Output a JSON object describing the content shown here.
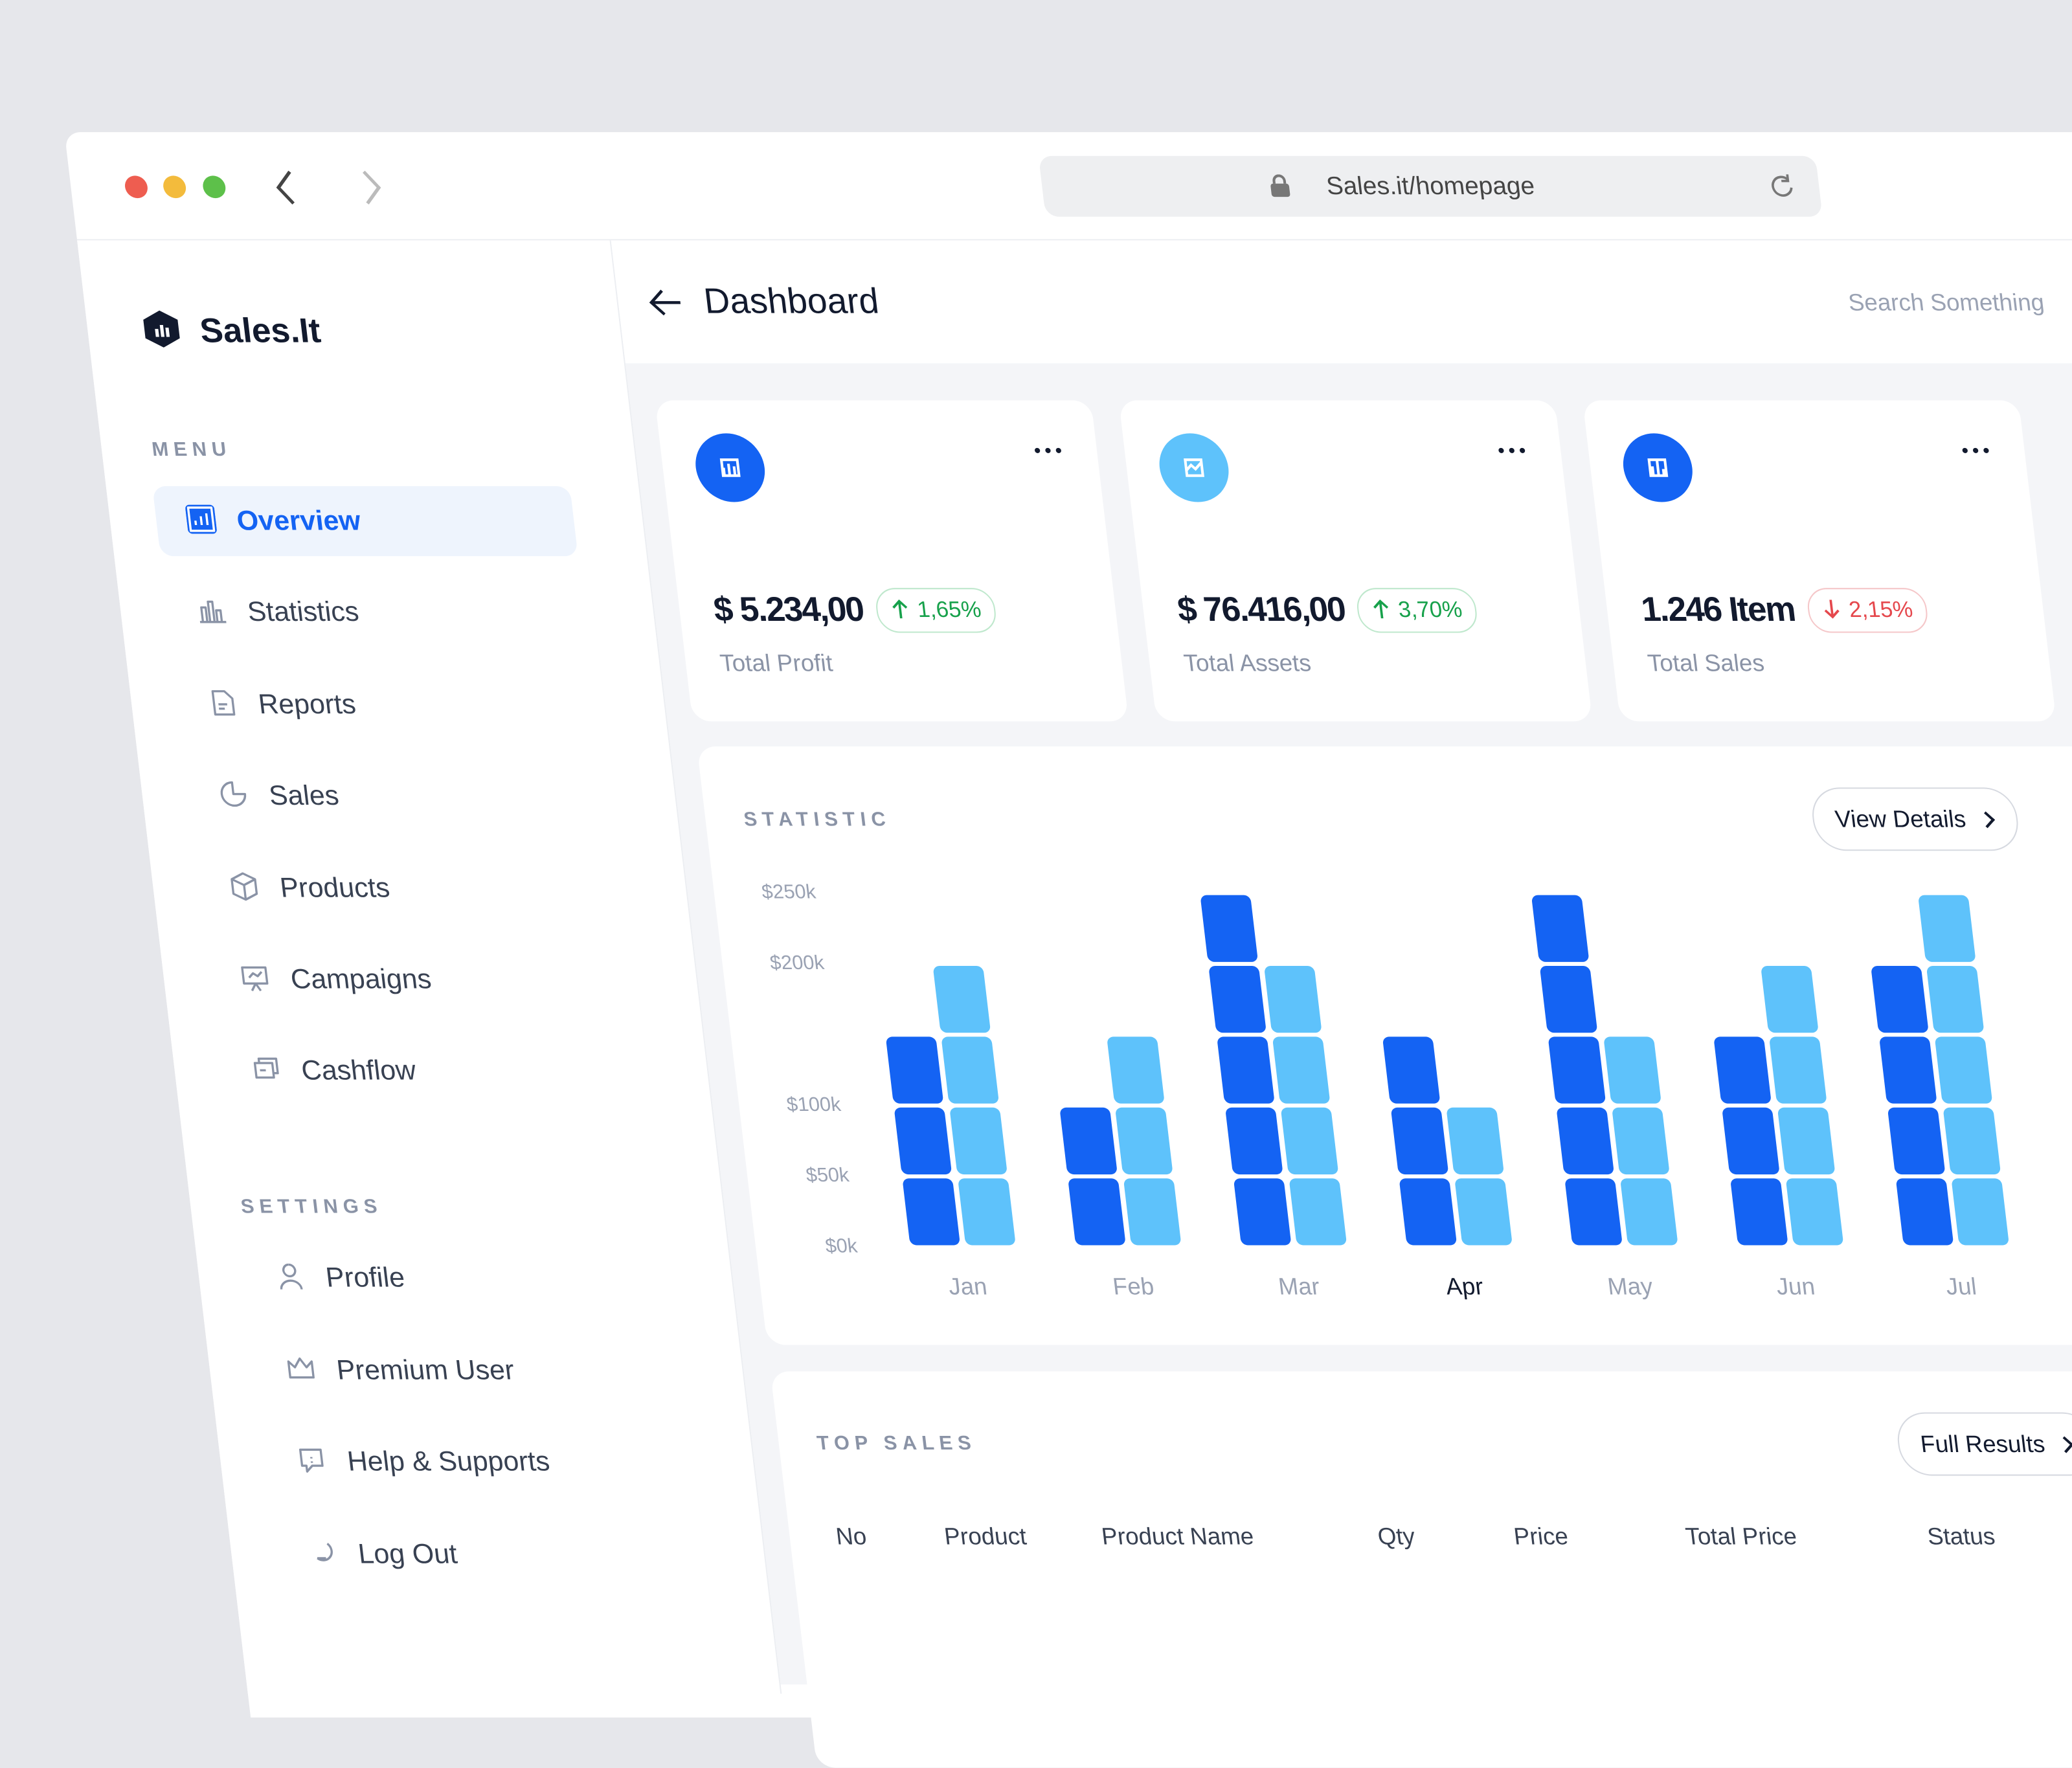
{
  "browser": {
    "url": "Sales.it/homepage"
  },
  "sidebar": {
    "brand": "Sales.It",
    "menu_title": "MENU",
    "menu": [
      "Overview",
      "Statistics",
      "Reports",
      "Sales",
      "Products",
      "Campaigns",
      "Cashflow"
    ],
    "active": 0,
    "settings_title": "SETTINGS",
    "settings": [
      "Profile",
      "Premium User",
      "Help & Supports",
      "Log Out"
    ]
  },
  "header": {
    "title": "Dashboard",
    "search": "Search Something"
  },
  "cards": [
    {
      "value": "$ 5.234,00",
      "change": "1,65%",
      "label": "Total Profit",
      "trend": "up",
      "icon_color": "#1463f3"
    },
    {
      "value": "$ 76.416,00",
      "change": "3,70%",
      "label": "Total Assets",
      "trend": "up",
      "icon_color": "#5ec2fb"
    },
    {
      "value": "1.246 Item",
      "change": "2,15%",
      "label": "Total Sales",
      "trend": "down",
      "icon_color": "#1463f3"
    }
  ],
  "chart_data": {
    "type": "block-bar",
    "title": "STATISTIC",
    "button": "View Details",
    "categories": [
      "Jan",
      "Feb",
      "Mar",
      "Apr",
      "May",
      "Jun",
      "Jul"
    ],
    "active_category": "Apr",
    "series": [
      {
        "color": "#1463f3",
        "values": [
          150000,
          100000,
          250000,
          150000,
          250000,
          150000,
          200000
        ]
      },
      {
        "color": "#5ec2fb",
        "values": [
          200000,
          150000,
          200000,
          100000,
          150000,
          200000,
          250000
        ]
      }
    ],
    "ylim": [
      0,
      250000
    ],
    "yticks": [
      {
        "value": 250000,
        "label": "$250k"
      },
      {
        "value": 200000,
        "label": "$200k"
      },
      {
        "value": 100000,
        "label": "$100k"
      },
      {
        "value": 50000,
        "label": "$50k"
      },
      {
        "value": 0,
        "label": "$0k"
      }
    ],
    "block": 50000
  },
  "top_sales": {
    "title": "TOP SALES",
    "button": "Full Results",
    "columns": [
      "No",
      "Product",
      "Product Name",
      "Qty",
      "Price",
      "Total Price",
      "Status"
    ]
  }
}
